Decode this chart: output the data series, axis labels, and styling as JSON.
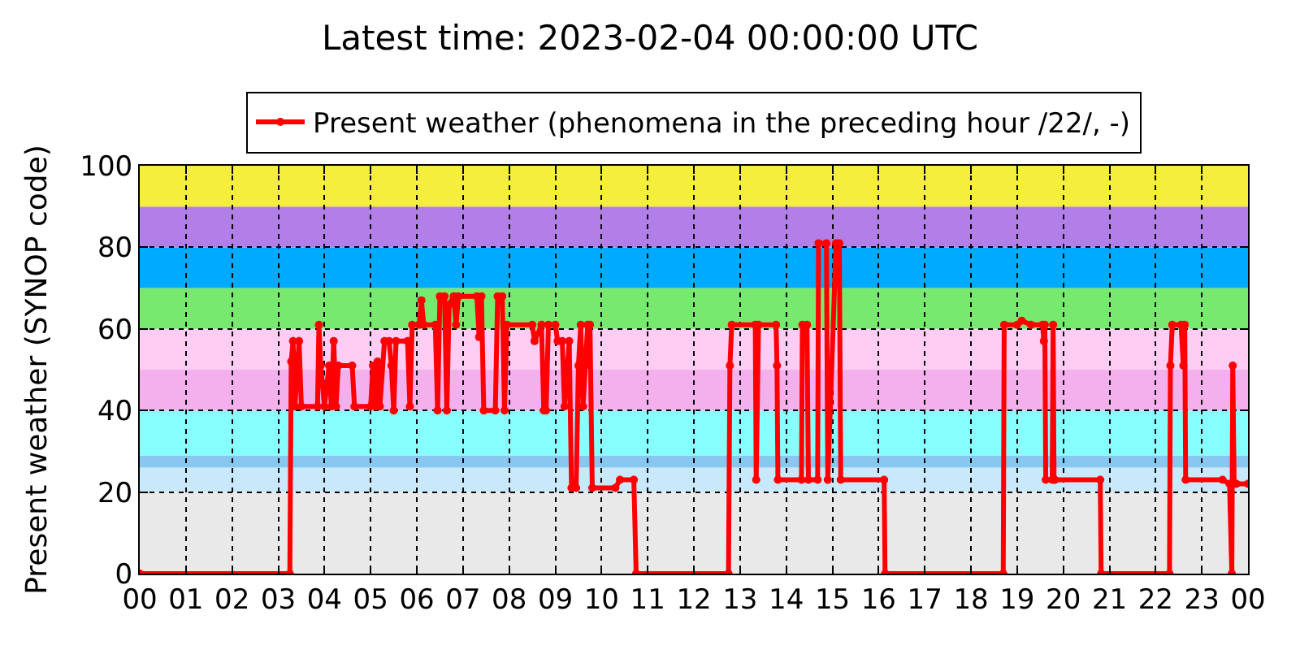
{
  "chart_data": {
    "type": "line",
    "title": "Latest time: 2023-02-04 00:00:00 UTC",
    "ylabel": "Present weather (SYNOP code)",
    "xlim": [
      0,
      24
    ],
    "xticks": [
      {
        "value": 0,
        "label": "00"
      },
      {
        "value": 1,
        "label": "01"
      },
      {
        "value": 2,
        "label": "02"
      },
      {
        "value": 3,
        "label": "03"
      },
      {
        "value": 4,
        "label": "04"
      },
      {
        "value": 5,
        "label": "05"
      },
      {
        "value": 6,
        "label": "06"
      },
      {
        "value": 7,
        "label": "07"
      },
      {
        "value": 8,
        "label": "08"
      },
      {
        "value": 9,
        "label": "09"
      },
      {
        "value": 10,
        "label": "10"
      },
      {
        "value": 11,
        "label": "11"
      },
      {
        "value": 12,
        "label": "12"
      },
      {
        "value": 13,
        "label": "13"
      },
      {
        "value": 14,
        "label": "14"
      },
      {
        "value": 15,
        "label": "15"
      },
      {
        "value": 16,
        "label": "16"
      },
      {
        "value": 17,
        "label": "17"
      },
      {
        "value": 18,
        "label": "18"
      },
      {
        "value": 19,
        "label": "19"
      },
      {
        "value": 20,
        "label": "20"
      },
      {
        "value": 21,
        "label": "21"
      },
      {
        "value": 22,
        "label": "22"
      },
      {
        "value": 23,
        "label": "23"
      },
      {
        "value": 24,
        "label": "00"
      }
    ],
    "ylim": [
      0,
      100
    ],
    "yticks": [
      0,
      20,
      40,
      60,
      80,
      100
    ],
    "grid": true,
    "legend": "top",
    "marker": "circle",
    "line_style": "solid",
    "bands": [
      {
        "axis": "y",
        "from": 0,
        "to": 20,
        "color": "#e9e9e9"
      },
      {
        "axis": "y",
        "from": 20,
        "to": 26,
        "color": "#c8e8fb"
      },
      {
        "axis": "y",
        "from": 26,
        "to": 29,
        "color": "#88c8f0"
      },
      {
        "axis": "y",
        "from": 29,
        "to": 40,
        "color": "#88ffff"
      },
      {
        "axis": "y",
        "from": 40,
        "to": 50,
        "color": "#f4b0ec"
      },
      {
        "axis": "y",
        "from": 50,
        "to": 60,
        "color": "#ffccf4"
      },
      {
        "axis": "y",
        "from": 60,
        "to": 70,
        "color": "#77e96e"
      },
      {
        "axis": "y",
        "from": 70,
        "to": 80,
        "color": "#00aaff"
      },
      {
        "axis": "y",
        "from": 80,
        "to": 90,
        "color": "#b27ee8"
      },
      {
        "axis": "y",
        "from": 90,
        "to": 100,
        "color": "#f5ee3c"
      }
    ],
    "series": [
      {
        "name": "Present weather (phenomena in the preceding hour /22/, -)",
        "color": "#ff0000",
        "x": [
          0,
          3.25,
          3.28,
          3.32,
          3.36,
          3.45,
          3.5,
          3.85,
          3.88,
          3.92,
          4.0,
          4.1,
          4.15,
          4.2,
          4.25,
          4.3,
          4.6,
          4.65,
          5.0,
          5.05,
          5.1,
          5.15,
          5.2,
          5.3,
          5.4,
          5.45,
          5.5,
          5.55,
          5.8,
          5.85,
          5.9,
          6.05,
          6.1,
          6.15,
          6.4,
          6.45,
          6.5,
          6.6,
          6.65,
          6.7,
          6.8,
          6.85,
          6.9,
          7.3,
          7.35,
          7.4,
          7.45,
          7.7,
          7.75,
          7.85,
          7.9,
          7.95,
          8.5,
          8.55,
          8.7,
          8.75,
          8.8,
          8.85,
          9.0,
          9.05,
          9.15,
          9.2,
          9.3,
          9.35,
          9.45,
          9.5,
          9.55,
          9.6,
          9.65,
          9.7,
          9.75,
          9.8,
          10.3,
          10.4,
          10.7,
          10.75,
          12.75,
          12.78,
          12.82,
          13.33,
          13.35,
          13.4,
          13.78,
          13.8,
          13.82,
          14.33,
          14.35,
          14.45,
          14.48,
          14.68,
          14.7,
          14.87,
          14.9,
          15.08,
          15.15,
          15.18,
          16.12,
          16.14,
          18.7,
          18.72,
          19.0,
          19.1,
          19.3,
          19.55,
          19.58,
          19.6,
          19.62,
          19.76,
          19.78,
          19.8,
          19.82,
          20.8,
          20.82,
          22.3,
          22.32,
          22.36,
          22.55,
          22.6,
          22.63,
          22.65,
          23.45,
          23.6,
          23.65,
          23.67,
          23.7,
          23.75,
          24
        ],
        "values": [
          0,
          0,
          52,
          57,
          41,
          57,
          41,
          41,
          61,
          51,
          41,
          51,
          41,
          57,
          41,
          51,
          51,
          41,
          41,
          51,
          41,
          52,
          41,
          57,
          57,
          51,
          40,
          57,
          57,
          41,
          61,
          61,
          67,
          61,
          61,
          40,
          68,
          68,
          40,
          66,
          68,
          61,
          68,
          68,
          58,
          68,
          40,
          40,
          68,
          68,
          40,
          61,
          61,
          57,
          61,
          40,
          40,
          61,
          61,
          57,
          57,
          41,
          57,
          21,
          21,
          51,
          61,
          41,
          51,
          61,
          61,
          21,
          21,
          23,
          23,
          0,
          0,
          51,
          61,
          61,
          23,
          61,
          61,
          51,
          23,
          23,
          61,
          61,
          23,
          23,
          81,
          81,
          23,
          81,
          81,
          23,
          23,
          0,
          0,
          61,
          61,
          62,
          61,
          61,
          57,
          61,
          23,
          23,
          61,
          23,
          23,
          23,
          0,
          0,
          51,
          61,
          61,
          51,
          61,
          23,
          23,
          22,
          0,
          51,
          22,
          22,
          22
        ]
      }
    ]
  }
}
